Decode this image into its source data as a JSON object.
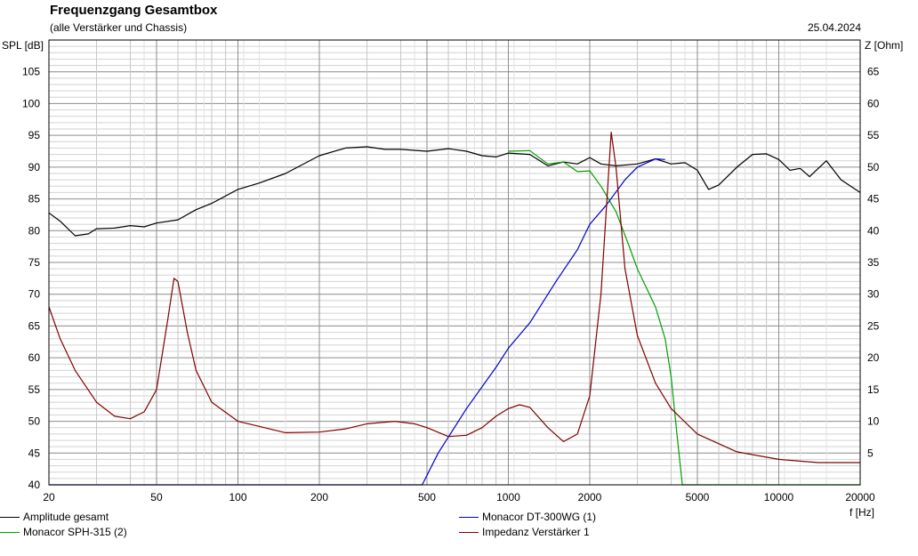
{
  "header": {
    "title": "Frequenzgang Gesamtbox",
    "subtitle": "(alle Verstärker und Chassis)",
    "date": "25.04.2024"
  },
  "chart_data": {
    "type": "line",
    "title": "Frequenzgang Gesamtbox",
    "subtitle": "(alle Verstärker und Chassis)",
    "xlabel": "f [Hz]",
    "ylabel": "SPL [dB]",
    "y2label": "Z [Ohm]",
    "xscale": "log",
    "xlim": [
      20,
      20000
    ],
    "ylim": [
      40,
      110
    ],
    "y2lim": [
      0,
      70
    ],
    "grid": true,
    "legend_position": "bottom",
    "x_ticks": [
      20,
      50,
      100,
      200,
      500,
      1000,
      2000,
      5000,
      10000,
      20000
    ],
    "y_ticks": [
      40,
      45,
      50,
      55,
      60,
      65,
      70,
      75,
      80,
      85,
      90,
      95,
      100,
      105
    ],
    "y2_ticks": [
      5,
      10,
      15,
      20,
      25,
      30,
      35,
      40,
      45,
      50,
      55,
      60,
      65
    ],
    "series": [
      {
        "name": "Amplitude gesamt",
        "color": "#000000",
        "axis": "left",
        "points": [
          [
            20,
            82.8
          ],
          [
            22,
            81.5
          ],
          [
            25,
            79.2
          ],
          [
            28,
            79.5
          ],
          [
            30,
            80.3
          ],
          [
            35,
            80.4
          ],
          [
            40,
            80.8
          ],
          [
            45,
            80.6
          ],
          [
            50,
            81.2
          ],
          [
            60,
            81.7
          ],
          [
            70,
            83.3
          ],
          [
            80,
            84.3
          ],
          [
            100,
            86.5
          ],
          [
            120,
            87.5
          ],
          [
            150,
            89.0
          ],
          [
            200,
            91.8
          ],
          [
            250,
            93.0
          ],
          [
            300,
            93.2
          ],
          [
            350,
            92.8
          ],
          [
            400,
            92.8
          ],
          [
            500,
            92.5
          ],
          [
            600,
            92.9
          ],
          [
            700,
            92.5
          ],
          [
            800,
            91.8
          ],
          [
            900,
            91.6
          ],
          [
            1000,
            92.2
          ],
          [
            1200,
            92.0
          ],
          [
            1400,
            90.2
          ],
          [
            1600,
            90.8
          ],
          [
            1800,
            90.5
          ],
          [
            2000,
            91.5
          ],
          [
            2200,
            90.5
          ],
          [
            2500,
            90.2
          ],
          [
            3000,
            90.5
          ],
          [
            3500,
            91.3
          ],
          [
            4000,
            90.5
          ],
          [
            4500,
            90.7
          ],
          [
            5000,
            89.5
          ],
          [
            5500,
            86.5
          ],
          [
            6000,
            87.2
          ],
          [
            7000,
            90.0
          ],
          [
            8000,
            92.0
          ],
          [
            9000,
            92.1
          ],
          [
            10000,
            91.2
          ],
          [
            11000,
            89.5
          ],
          [
            12000,
            89.8
          ],
          [
            13000,
            88.5
          ],
          [
            15000,
            91.0
          ],
          [
            17000,
            88.0
          ],
          [
            20000,
            86.0
          ]
        ]
      },
      {
        "name": "Monacor SPH-315 (2)",
        "color": "#00a000",
        "axis": "left",
        "points": [
          [
            1000,
            92.5
          ],
          [
            1200,
            92.6
          ],
          [
            1400,
            90.5
          ],
          [
            1600,
            90.8
          ],
          [
            1800,
            89.3
          ],
          [
            2000,
            89.4
          ],
          [
            2200,
            87.0
          ],
          [
            2500,
            83.0
          ],
          [
            2800,
            77.5
          ],
          [
            3000,
            74.0
          ],
          [
            3500,
            68.0
          ],
          [
            3800,
            63.0
          ],
          [
            4000,
            57.0
          ],
          [
            4200,
            48.0
          ],
          [
            4400,
            40.0
          ],
          [
            20000,
            40.0
          ]
        ]
      },
      {
        "name": "Monacor DT-300WG (1)",
        "color": "#0000c8",
        "axis": "left",
        "points": [
          [
            20,
            40.0
          ],
          [
            480,
            40.0
          ],
          [
            550,
            45.0
          ],
          [
            700,
            52.0
          ],
          [
            900,
            58.5
          ],
          [
            1000,
            61.5
          ],
          [
            1200,
            65.5
          ],
          [
            1500,
            72.0
          ],
          [
            1800,
            77.0
          ],
          [
            2000,
            81.0
          ],
          [
            2300,
            84.0
          ],
          [
            2700,
            88.0
          ],
          [
            3000,
            90.0
          ],
          [
            3500,
            91.3
          ],
          [
            3800,
            91.2
          ]
        ]
      },
      {
        "name": "Impedanz Verstärker 1",
        "color": "#800000",
        "axis": "right",
        "points": [
          [
            20,
            28.0
          ],
          [
            22,
            23.0
          ],
          [
            25,
            18.0
          ],
          [
            30,
            13.0
          ],
          [
            35,
            10.8
          ],
          [
            40,
            10.4
          ],
          [
            45,
            11.5
          ],
          [
            50,
            15.0
          ],
          [
            55,
            26.0
          ],
          [
            58,
            32.5
          ],
          [
            60,
            32.0
          ],
          [
            65,
            24.0
          ],
          [
            70,
            18.0
          ],
          [
            80,
            13.0
          ],
          [
            100,
            10.0
          ],
          [
            150,
            8.2
          ],
          [
            200,
            8.3
          ],
          [
            250,
            8.8
          ],
          [
            300,
            9.6
          ],
          [
            380,
            10.0
          ],
          [
            450,
            9.6
          ],
          [
            500,
            9.0
          ],
          [
            600,
            7.6
          ],
          [
            700,
            7.8
          ],
          [
            800,
            9.0
          ],
          [
            900,
            10.8
          ],
          [
            1000,
            12.0
          ],
          [
            1100,
            12.6
          ],
          [
            1200,
            12.2
          ],
          [
            1400,
            9.0
          ],
          [
            1600,
            6.8
          ],
          [
            1800,
            8.0
          ],
          [
            2000,
            14.0
          ],
          [
            2200,
            30.0
          ],
          [
            2400,
            55.5
          ],
          [
            2500,
            50.0
          ],
          [
            2700,
            34.0
          ],
          [
            3000,
            23.5
          ],
          [
            3500,
            16.0
          ],
          [
            4000,
            12.0
          ],
          [
            5000,
            8.0
          ],
          [
            7000,
            5.2
          ],
          [
            10000,
            4.0
          ],
          [
            14000,
            3.5
          ],
          [
            20000,
            3.5
          ]
        ]
      }
    ]
  }
}
